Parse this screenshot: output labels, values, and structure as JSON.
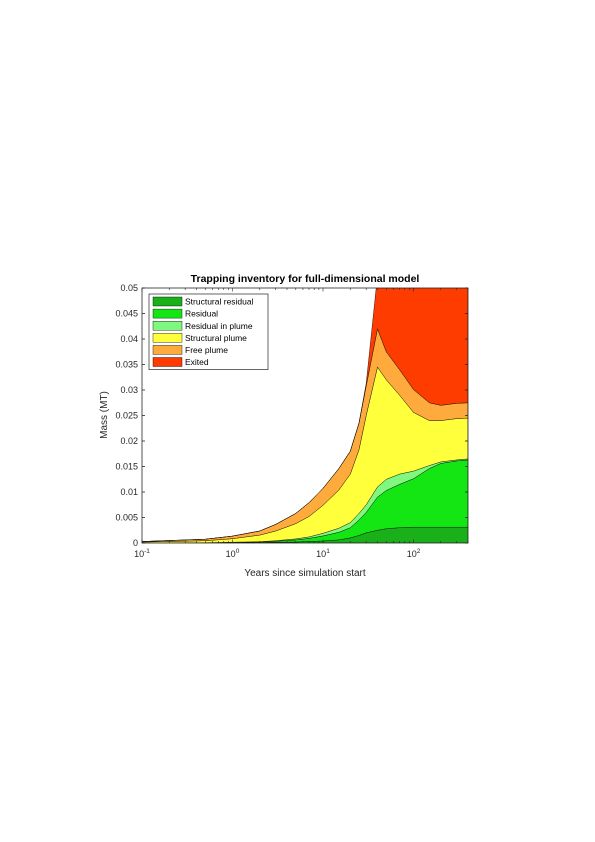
{
  "chart_data": {
    "type": "area",
    "stacked": true,
    "title": "Trapping inventory for full-dimensional model",
    "xlabel": "Years since simulation start",
    "ylabel": "Mass (MT)",
    "xscale": "log",
    "xlim": [
      0.1,
      400
    ],
    "ylim": [
      0,
      0.05
    ],
    "xticks": [
      {
        "base": "10",
        "exp": "-1"
      },
      {
        "base": "10",
        "exp": "0"
      },
      {
        "base": "10",
        "exp": "1"
      },
      {
        "base": "10",
        "exp": "2"
      }
    ],
    "yticks": [
      "0",
      "0.005",
      "0.01",
      "0.015",
      "0.02",
      "0.025",
      "0.03",
      "0.035",
      "0.04",
      "0.045",
      "0.05"
    ],
    "legend_position": "top-left",
    "x": [
      0.1,
      0.2,
      0.5,
      1,
      2,
      3,
      5,
      7,
      10,
      15,
      20,
      25,
      30,
      40,
      50,
      70,
      100,
      150,
      200,
      300,
      400
    ],
    "series": [
      {
        "name": "Structural residual",
        "color": "#1ab01a",
        "values": [
          0,
          0,
          5e-05,
          8e-05,
          0.0001,
          0.00015,
          0.0002,
          0.0003,
          0.0004,
          0.0006,
          0.001,
          0.0015,
          0.002,
          0.0025,
          0.0028,
          0.003,
          0.0031,
          0.0031,
          0.0031,
          0.0031,
          0.0031
        ]
      },
      {
        "name": "Residual",
        "color": "#14e614",
        "values": [
          0,
          0,
          0,
          5e-05,
          0.0001,
          0.0002,
          0.0004,
          0.0006,
          0.001,
          0.0015,
          0.002,
          0.003,
          0.004,
          0.0065,
          0.0075,
          0.0085,
          0.0095,
          0.0115,
          0.0125,
          0.013,
          0.0132
        ]
      },
      {
        "name": "Residual in plume",
        "color": "#80f880",
        "values": [
          0,
          0,
          0,
          2e-05,
          5e-05,
          0.0001,
          0.0002,
          0.0003,
          0.0005,
          0.0008,
          0.001,
          0.0013,
          0.0015,
          0.002,
          0.0022,
          0.002,
          0.0015,
          0.0006,
          0.0003,
          0.0002,
          0.0002
        ]
      },
      {
        "name": "Structural plume",
        "color": "#ffff3c",
        "values": [
          0.0002,
          0.0003,
          0.0004,
          0.0007,
          0.0013,
          0.0019,
          0.003,
          0.004,
          0.0055,
          0.0075,
          0.0095,
          0.0125,
          0.0175,
          0.0235,
          0.0195,
          0.0155,
          0.0115,
          0.0088,
          0.0081,
          0.0081,
          0.008
        ]
      },
      {
        "name": "Free plume",
        "color": "#ffaa3c",
        "values": [
          0.0001,
          0.0002,
          0.0003,
          0.0005,
          0.0008,
          0.0013,
          0.002,
          0.0027,
          0.0033,
          0.0042,
          0.0045,
          0.0052,
          0.0058,
          0.0075,
          0.0055,
          0.005,
          0.0045,
          0.0035,
          0.003,
          0.003,
          0.003
        ]
      },
      {
        "name": "Exited",
        "color": "#ff3c00",
        "values": [
          0,
          0,
          0,
          0,
          0,
          0,
          0,
          0,
          0,
          0,
          0,
          0,
          0.0005,
          0.0105,
          0.0145,
          0.0175,
          0.0205,
          0.0232,
          0.0235,
          0.0235,
          0.0235
        ]
      }
    ]
  }
}
